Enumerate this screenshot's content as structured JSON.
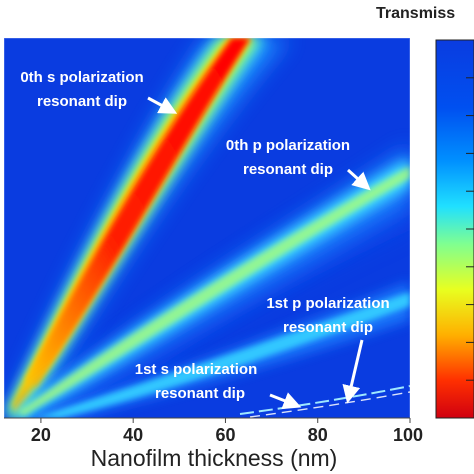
{
  "chart_data": {
    "type": "heatmap",
    "title": "Transmiss",
    "xlabel": "Nanofilm thickness (nm)",
    "ylabel": "",
    "xlim": [
      12,
      100
    ],
    "x_ticks": [
      "20",
      "40",
      "60",
      "80",
      "100"
    ],
    "x_tick_values": [
      20,
      40,
      60,
      80,
      100
    ],
    "colorbar": {
      "label": "Transmiss",
      "colormap": [
        "#ff0000",
        "#ffcc00",
        "#ccff33",
        "#66ffcc",
        "#00ccff",
        "#0077ff",
        "#0044e8"
      ]
    },
    "background_color": "#0a3ce0",
    "annotations": [
      {
        "id": "s0",
        "lines": [
          "0th s polarization",
          "resonant dip"
        ]
      },
      {
        "id": "p0",
        "lines": [
          "0th p polarization",
          "resonant dip"
        ]
      },
      {
        "id": "p1",
        "lines": [
          "1st p polarization",
          "resonant dip"
        ]
      },
      {
        "id": "s1",
        "lines": [
          "1st s polarization",
          "resonant dip"
        ]
      }
    ],
    "bands": [
      {
        "name": "0th s polarization resonant dip"
      },
      {
        "name": "0th p polarization resonant dip"
      },
      {
        "name": "1st p polarization resonant dip"
      },
      {
        "name": "1st s polarization resonant dip"
      }
    ]
  }
}
